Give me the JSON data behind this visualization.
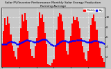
{
  "title": "Solar PV/Inverter Performance Monthly Solar Energy Production Running Average",
  "bar_values": [
    4.5,
    7.2,
    9.8,
    8.5,
    10.2,
    8.8,
    6.5,
    4.2,
    3.1,
    2.0,
    1.5,
    3.8,
    5.2,
    7.8,
    10.5,
    9.2,
    10.8,
    9.5,
    7.2,
    5.1,
    3.5,
    2.2,
    1.8,
    4.1,
    5.8,
    8.2,
    11.0,
    9.8,
    10.5,
    9.0,
    6.8,
    4.5,
    0.5,
    0.3,
    0.2,
    0.8,
    1.5,
    4.2,
    7.5,
    10.2,
    10.8,
    10.5,
    9.2,
    7.5,
    5.2,
    3.2,
    2.5,
    5.0,
    6.2,
    8.8,
    10.2,
    9.5,
    10.0,
    9.2,
    7.8,
    5.8,
    4.1,
    2.8,
    1.5,
    1.2,
    3.2,
    5.5,
    8.5,
    9.8,
    10.5,
    9.2,
    7.5,
    5.2,
    3.8,
    2.2,
    1.8,
    0.9
  ],
  "running_avg": [
    4.5,
    4.5,
    4.5,
    4.5,
    4.8,
    5.0,
    5.1,
    5.0,
    4.9,
    4.8,
    4.6,
    4.6,
    4.7,
    4.8,
    5.0,
    5.1,
    5.3,
    5.4,
    5.4,
    5.3,
    5.2,
    5.1,
    5.0,
    5.0,
    5.1,
    5.1,
    5.3,
    5.4,
    5.5,
    5.5,
    5.5,
    5.4,
    5.1,
    4.8,
    4.6,
    4.4,
    4.3,
    4.3,
    4.5,
    4.7,
    4.9,
    5.1,
    5.2,
    5.2,
    5.2,
    5.1,
    5.0,
    5.1,
    5.1,
    5.2,
    5.3,
    5.3,
    5.4,
    5.4,
    5.4,
    5.4,
    5.3,
    5.2,
    5.1,
    5.0,
    4.9,
    4.9,
    5.0,
    5.1,
    5.2,
    5.2,
    5.2,
    5.1,
    5.0,
    4.9,
    4.8,
    4.7
  ],
  "bar_color": "#FF0000",
  "avg_color": "#0000FF",
  "bg_color": "#C8C8C8",
  "plot_bg": "#C8C8C8",
  "grid_color": "#FFFFFF",
  "ylim": [
    0,
    12
  ],
  "yticks": [
    2,
    4,
    6,
    8,
    10
  ],
  "title_fontsize": 3.2,
  "tick_fontsize": 2.8,
  "legend_fontsize": 2.2
}
